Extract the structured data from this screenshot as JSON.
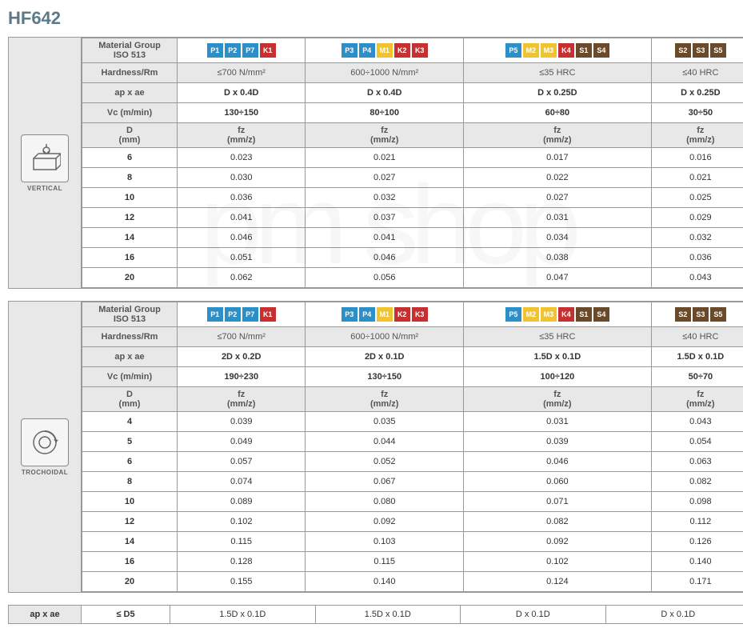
{
  "title": "HF642",
  "watermark": "pm shop",
  "colors": {
    "P": "#2d8fc7",
    "M": "#f0c430",
    "K": "#c73030",
    "S": "#6b4a2a"
  },
  "header_labels": {
    "material_group": "Material Group\nISO 513",
    "hardness": "Hardness/Rm",
    "ap_ae": "ap x ae",
    "vc": "Vc (m/min)",
    "d": "D\n(mm)",
    "fz": "fz\n(mm/z)"
  },
  "columns": [
    {
      "badges": [
        {
          "t": "P1",
          "c": "P"
        },
        {
          "t": "P2",
          "c": "P"
        },
        {
          "t": "P7",
          "c": "P"
        },
        {
          "t": "K1",
          "c": "K"
        }
      ]
    },
    {
      "badges": [
        {
          "t": "P3",
          "c": "P"
        },
        {
          "t": "P4",
          "c": "P"
        },
        {
          "t": "M1",
          "c": "M"
        },
        {
          "t": "K2",
          "c": "K"
        },
        {
          "t": "K3",
          "c": "K"
        }
      ]
    },
    {
      "badges": [
        {
          "t": "P5",
          "c": "P"
        },
        {
          "t": "M2",
          "c": "M"
        },
        {
          "t": "M3",
          "c": "M"
        },
        {
          "t": "K4",
          "c": "K"
        },
        {
          "t": "S1",
          "c": "S"
        },
        {
          "t": "S4",
          "c": "S"
        }
      ]
    },
    {
      "badges": [
        {
          "t": "S2",
          "c": "S"
        },
        {
          "t": "S3",
          "c": "S"
        },
        {
          "t": "S5",
          "c": "S"
        }
      ]
    }
  ],
  "block1": {
    "icon_label": "VERTICAL",
    "hardness": [
      "≤700 N/mm²",
      "600÷1000 N/mm²",
      "≤35 HRC",
      "≤40 HRC"
    ],
    "ap_ae": [
      "D x 0.4D",
      "D x 0.4D",
      "D x 0.25D",
      "D x 0.25D"
    ],
    "vc": [
      "130÷150",
      "80÷100",
      "60÷80",
      "30÷50"
    ],
    "diameters": [
      "6",
      "8",
      "10",
      "12",
      "14",
      "16",
      "20"
    ],
    "fz": [
      [
        "0.023",
        "0.021",
        "0.017",
        "0.016"
      ],
      [
        "0.030",
        "0.027",
        "0.022",
        "0.021"
      ],
      [
        "0.036",
        "0.032",
        "0.027",
        "0.025"
      ],
      [
        "0.041",
        "0.037",
        "0.031",
        "0.029"
      ],
      [
        "0.046",
        "0.041",
        "0.034",
        "0.032"
      ],
      [
        "0.051",
        "0.046",
        "0.038",
        "0.036"
      ],
      [
        "0.062",
        "0.056",
        "0.047",
        "0.043"
      ]
    ]
  },
  "block2": {
    "icon_label": "TROCHOIDAL",
    "hardness": [
      "≤700 N/mm²",
      "600÷1000 N/mm²",
      "≤35 HRC",
      "≤40 HRC"
    ],
    "ap_ae": [
      "2D x 0.2D",
      "2D x 0.1D",
      "1.5D x 0.1D",
      "1.5D x 0.1D"
    ],
    "vc": [
      "190÷230",
      "130÷150",
      "100÷120",
      "50÷70"
    ],
    "diameters": [
      "4",
      "5",
      "6",
      "8",
      "10",
      "12",
      "14",
      "16",
      "20"
    ],
    "fz": [
      [
        "0.039",
        "0.035",
        "0.031",
        "0.043"
      ],
      [
        "0.049",
        "0.044",
        "0.039",
        "0.054"
      ],
      [
        "0.057",
        "0.052",
        "0.046",
        "0.063"
      ],
      [
        "0.074",
        "0.067",
        "0.060",
        "0.082"
      ],
      [
        "0.089",
        "0.080",
        "0.071",
        "0.098"
      ],
      [
        "0.102",
        "0.092",
        "0.082",
        "0.112"
      ],
      [
        "0.115",
        "0.103",
        "0.092",
        "0.126"
      ],
      [
        "0.128",
        "0.115",
        "0.102",
        "0.140"
      ],
      [
        "0.155",
        "0.140",
        "0.124",
        "0.171"
      ]
    ]
  },
  "footer": {
    "label": "ap x ae",
    "cond": "≤ D5",
    "vals": [
      "1.5D x 0.1D",
      "1.5D x 0.1D",
      "D x 0.1D",
      "D x 0.1D"
    ]
  }
}
